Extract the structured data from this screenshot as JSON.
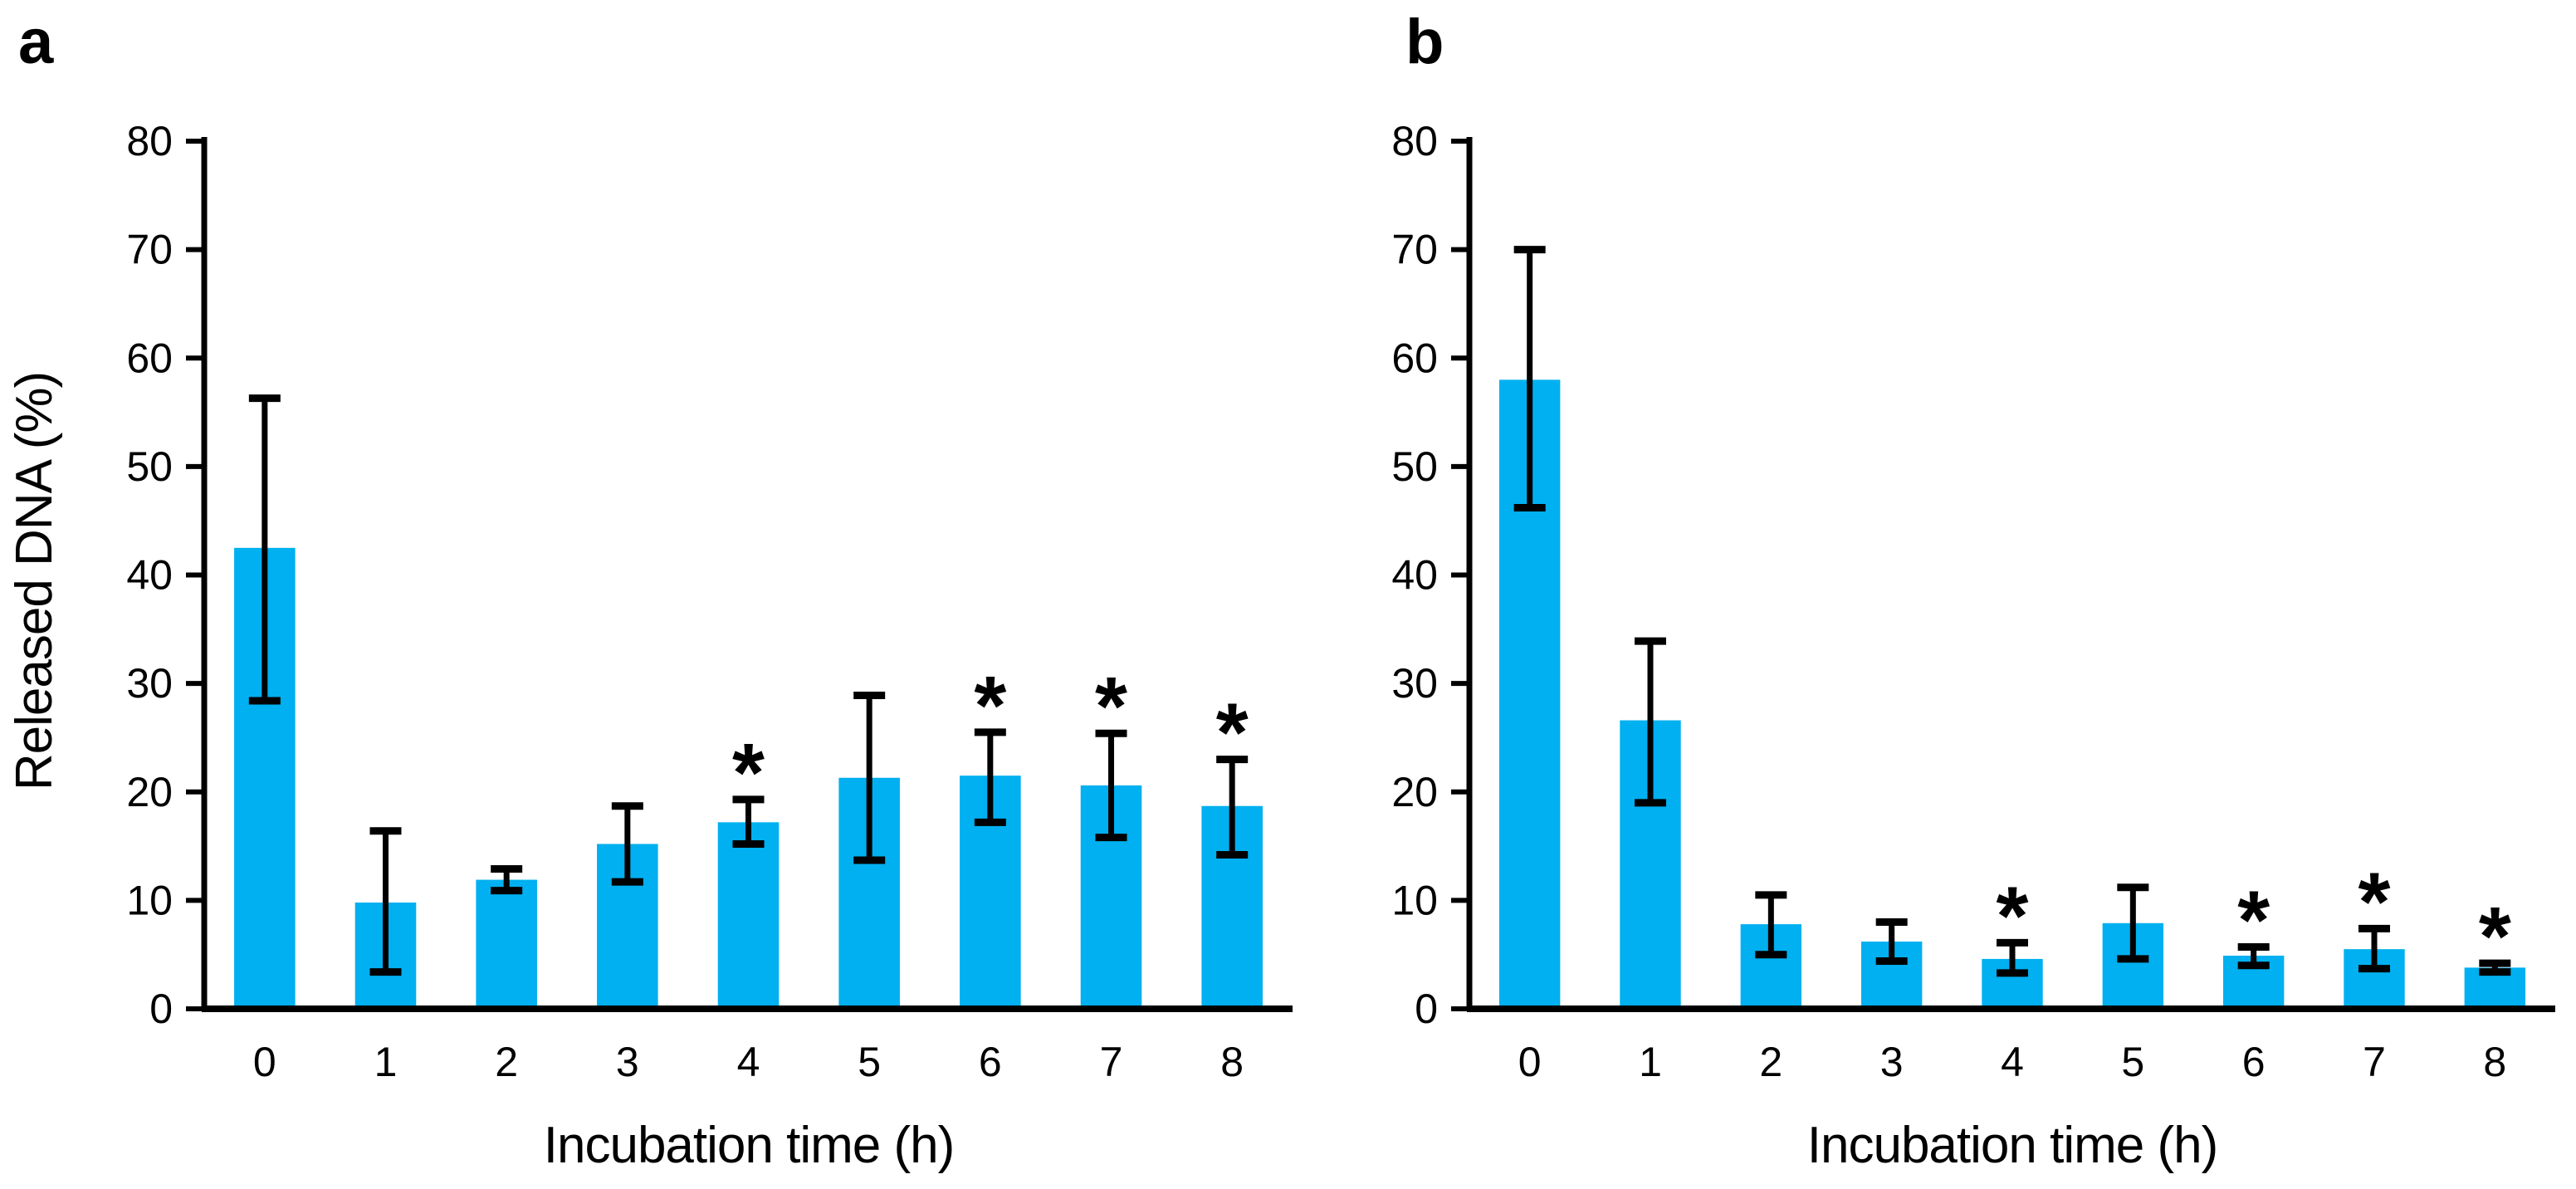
{
  "figure": {
    "background": "#ffffff",
    "axis_color": "#000000",
    "bar_color": "#00b0f0"
  },
  "chart_data": [
    {
      "type": "bar",
      "panel_label": "a",
      "xlabel": "Incubation time (h)",
      "ylabel": "Released DNA (%)",
      "categories": [
        "0",
        "1",
        "2",
        "3",
        "4",
        "5",
        "6",
        "7",
        "8"
      ],
      "values": [
        42.5,
        9.8,
        11.9,
        15.2,
        17.2,
        21.3,
        21.5,
        20.6,
        18.7
      ],
      "error_upper": [
        56.3,
        16.4,
        12.9,
        18.7,
        19.3,
        28.9,
        25.5,
        25.4,
        23.0
      ],
      "error_lower": [
        28.4,
        3.4,
        10.9,
        11.7,
        15.2,
        13.7,
        17.2,
        15.8,
        14.2
      ],
      "significant": [
        false,
        false,
        false,
        false,
        true,
        false,
        true,
        true,
        true
      ],
      "sig_marker": "*",
      "ylim": [
        0,
        80
      ],
      "y_ticks": [
        0,
        10,
        20,
        30,
        40,
        50,
        60,
        70,
        80
      ],
      "grid": false,
      "legend": "none",
      "bar_color": "#00b0f0"
    },
    {
      "type": "bar",
      "panel_label": "b",
      "xlabel": "Incubation time (h)",
      "ylabel": "",
      "categories": [
        "0",
        "1",
        "2",
        "3",
        "4",
        "5",
        "6",
        "7",
        "8"
      ],
      "values": [
        58.0,
        26.6,
        7.8,
        6.2,
        4.6,
        7.9,
        4.9,
        5.5,
        3.8
      ],
      "error_upper": [
        70.0,
        33.9,
        10.5,
        8.0,
        6.1,
        11.2,
        5.7,
        7.4,
        4.2
      ],
      "error_lower": [
        46.2,
        19.0,
        5.0,
        4.4,
        3.3,
        4.6,
        4.0,
        3.7,
        3.4
      ],
      "significant": [
        false,
        false,
        false,
        false,
        true,
        false,
        true,
        true,
        true
      ],
      "sig_marker": "*",
      "ylim": [
        0,
        80
      ],
      "y_ticks": [
        0,
        10,
        20,
        30,
        40,
        50,
        60,
        70,
        80
      ],
      "grid": false,
      "legend": "none",
      "bar_color": "#00b0f0"
    }
  ]
}
